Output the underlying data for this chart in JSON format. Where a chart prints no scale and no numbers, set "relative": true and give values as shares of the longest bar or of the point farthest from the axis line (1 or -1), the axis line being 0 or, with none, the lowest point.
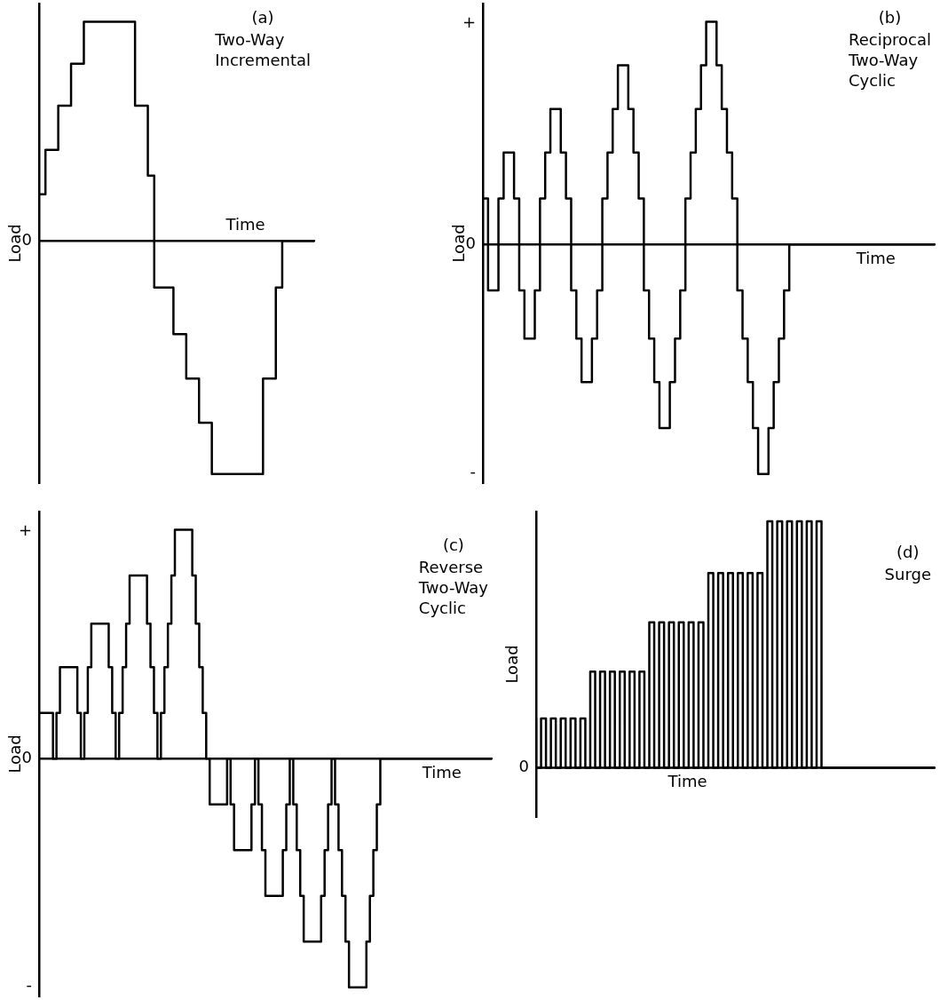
{
  "chart_data": [
    {
      "type": "step",
      "title": "(a)",
      "subtitle": "Two-Way Incremental",
      "xlabel": "Time",
      "ylabel": "Load",
      "relative": true,
      "color": "#000000",
      "annotations": [
        "0"
      ],
      "categories": [
        null,
        null,
        null,
        null,
        null,
        null,
        null,
        null,
        null,
        null,
        null,
        null,
        null,
        null,
        null,
        null,
        null,
        null,
        null,
        null,
        null,
        null,
        null,
        null,
        null,
        null,
        null,
        null,
        null,
        null,
        null,
        null,
        null,
        null,
        null,
        null,
        null,
        null,
        null,
        null,
        null,
        null,
        null,
        null
      ],
      "values": [
        0.2,
        0.2,
        0.39,
        0.39,
        0.58,
        0.58,
        0.76,
        0.76,
        0.94,
        0.94,
        0.94,
        0.94,
        0.94,
        0.94,
        0.94,
        0.94,
        0.58,
        0.58,
        0.28,
        -0.2,
        -0.2,
        -0.2,
        -0.4,
        -0.4,
        -0.59,
        -0.59,
        -0.78,
        -0.78,
        -1,
        -1,
        -1,
        -1,
        -1,
        -1,
        -1,
        -1,
        -0.59,
        -0.59,
        -0.2,
        0,
        0,
        0,
        0,
        0
      ]
    },
    {
      "type": "step",
      "title": "(b)",
      "subtitle": "Reciprocal Two-Way Cyclic",
      "xlabel": "Time",
      "ylabel": "Load",
      "relative": true,
      "color": "#000000",
      "annotations": [
        "+",
        "0",
        "-"
      ],
      "categories": [
        null,
        null,
        null,
        null,
        null,
        null,
        null,
        null,
        null,
        null,
        null,
        null,
        null,
        null,
        null,
        null,
        null,
        null,
        null,
        null,
        null,
        null,
        null,
        null,
        null,
        null,
        null,
        null,
        null,
        null,
        null,
        null,
        null,
        null,
        null,
        null,
        null,
        null,
        null,
        null,
        null,
        null,
        null,
        null,
        null,
        null,
        null,
        null,
        null,
        null,
        null,
        null,
        null,
        null,
        null,
        null,
        null,
        null,
        null,
        null,
        null,
        null,
        null,
        null,
        null,
        null,
        null,
        null,
        null,
        null,
        null,
        null,
        null,
        null,
        null,
        null,
        null,
        null,
        null,
        null,
        null,
        null,
        null,
        null,
        null,
        null,
        null,
        null
      ],
      "values": [
        0.2,
        0.2,
        -0.2,
        -0.2,
        0.2,
        0.4,
        0.4,
        0.2,
        -0.2,
        -0.41,
        -0.41,
        -0.2,
        0.2,
        0.4,
        0.59,
        0.59,
        0.4,
        0.2,
        -0.2,
        -0.41,
        -0.6,
        -0.6,
        -0.41,
        -0.2,
        0.2,
        0.4,
        0.59,
        0.78,
        0.78,
        0.59,
        0.4,
        0.2,
        -0.2,
        -0.41,
        -0.6,
        -0.8,
        -0.8,
        -0.6,
        -0.41,
        -0.2,
        0.2,
        0.4,
        0.59,
        0.78,
        0.97,
        0.97,
        0.78,
        0.59,
        0.4,
        0.2,
        -0.2,
        -0.41,
        -0.6,
        -0.8,
        -1,
        -1,
        -0.8,
        -0.6,
        -0.41,
        -0.2,
        0,
        0,
        0,
        0,
        0,
        0,
        0,
        0,
        0,
        0,
        0,
        0,
        0,
        0,
        0,
        0,
        0,
        0,
        0,
        0,
        0,
        0,
        0,
        0,
        0,
        0,
        0,
        0
      ]
    },
    {
      "type": "step",
      "title": "(c)",
      "subtitle": "Reverse Two-Way Cyclic",
      "xlabel": "Time",
      "ylabel": "Load",
      "relative": true,
      "color": "#000000",
      "annotations": [
        "+",
        "0",
        "-"
      ],
      "categories": [
        null,
        null,
        null,
        null,
        null,
        null,
        null,
        null,
        null,
        null,
        null,
        null,
        null,
        null,
        null,
        null,
        null,
        null,
        null,
        null,
        null,
        null,
        null,
        null,
        null,
        null,
        null,
        null,
        null,
        null,
        null,
        null,
        null,
        null,
        null,
        null,
        null,
        null,
        null,
        null,
        null,
        null,
        null,
        null,
        null,
        null,
        null,
        null,
        null,
        null,
        null,
        null,
        null,
        null,
        null,
        null,
        null,
        null,
        null,
        null,
        null,
        null,
        null,
        null,
        null,
        null,
        null,
        null,
        null,
        null,
        null,
        null,
        null,
        null,
        null,
        null,
        null,
        null,
        null,
        null,
        null,
        null,
        null,
        null,
        null,
        null,
        null,
        null,
        null,
        null,
        null,
        null,
        null,
        null,
        null,
        null,
        null,
        null,
        null,
        null,
        null,
        null,
        null,
        null,
        null,
        null,
        null,
        null,
        null,
        null,
        null,
        null,
        null,
        null,
        null,
        null,
        null,
        null,
        null,
        null,
        null,
        null,
        null,
        null,
        null,
        null,
        null,
        null,
        null,
        null,
        null
      ],
      "values": [
        0.2,
        0.2,
        0.2,
        0.2,
        0.2,
        0,
        0.2,
        0.4,
        0.4,
        0.4,
        0.4,
        0.4,
        0.2,
        0,
        0.2,
        0.4,
        0.59,
        0.59,
        0.59,
        0.59,
        0.59,
        0.4,
        0.2,
        0,
        0.2,
        0.4,
        0.59,
        0.8,
        0.8,
        0.8,
        0.8,
        0.8,
        0.59,
        0.4,
        0.2,
        0,
        0.2,
        0.4,
        0.59,
        0.8,
        1,
        1,
        1,
        1,
        1,
        0.8,
        0.59,
        0.4,
        0.2,
        0,
        -0.2,
        -0.2,
        -0.2,
        -0.2,
        -0.2,
        0,
        -0.2,
        -0.4,
        -0.4,
        -0.4,
        -0.4,
        -0.4,
        -0.2,
        0,
        -0.2,
        -0.4,
        -0.6,
        -0.6,
        -0.6,
        -0.6,
        -0.6,
        -0.4,
        -0.2,
        0,
        -0.2,
        -0.4,
        -0.6,
        -0.8,
        -0.8,
        -0.8,
        -0.8,
        -0.8,
        -0.6,
        -0.4,
        -0.2,
        0,
        -0.2,
        -0.4,
        -0.6,
        -0.8,
        -1,
        -1,
        -1,
        -1,
        -1,
        -0.8,
        -0.6,
        -0.4,
        -0.2,
        0,
        0,
        0,
        0,
        0,
        0,
        0,
        0,
        0,
        0,
        0,
        0,
        0,
        0,
        0,
        0,
        0,
        0,
        0,
        0,
        0,
        0,
        0,
        0,
        0,
        0,
        0,
        0,
        0,
        0,
        0,
        0
      ]
    },
    {
      "type": "step",
      "title": "(d)",
      "subtitle": "Surge",
      "xlabel": "Time",
      "ylabel": "Load",
      "relative": true,
      "color": "#000000",
      "annotations": [
        "0"
      ],
      "categories": [
        null,
        null,
        null,
        null,
        null,
        null,
        null,
        null,
        null,
        null,
        null,
        null,
        null,
        null,
        null,
        null,
        null,
        null,
        null,
        null,
        null,
        null,
        null,
        null,
        null,
        null,
        null,
        null,
        null,
        null,
        null,
        null,
        null,
        null,
        null,
        null,
        null,
        null,
        null,
        null,
        null,
        null,
        null,
        null,
        null,
        null,
        null,
        null,
        null,
        null,
        null,
        null,
        null,
        null,
        null,
        null,
        null,
        null,
        null,
        null,
        null,
        null,
        null,
        null,
        null,
        null,
        null,
        null,
        null,
        null,
        null,
        null,
        null,
        null,
        null,
        null,
        null,
        null,
        null,
        null,
        null,
        null
      ],
      "values": [
        0.2,
        0,
        0.2,
        0,
        0.2,
        0,
        0.2,
        0,
        0.2,
        0,
        0.2,
        0,
        0.39,
        0,
        0.39,
        0,
        0.39,
        0,
        0.39,
        0,
        0.39,
        0,
        0.39,
        0,
        0.59,
        0,
        0.59,
        0,
        0.59,
        0,
        0.59,
        0,
        0.59,
        0,
        0.59,
        0,
        0.79,
        0,
        0.79,
        0,
        0.79,
        0,
        0.79,
        0,
        0.79,
        0,
        0.79,
        0,
        1,
        0,
        1,
        0,
        1,
        0,
        1,
        0,
        1,
        0,
        1,
        0,
        0,
        0,
        0,
        0,
        0,
        0,
        0,
        0,
        0,
        0,
        0,
        0,
        0,
        0,
        0,
        0,
        0,
        0,
        0,
        0,
        0,
        0
      ]
    }
  ]
}
